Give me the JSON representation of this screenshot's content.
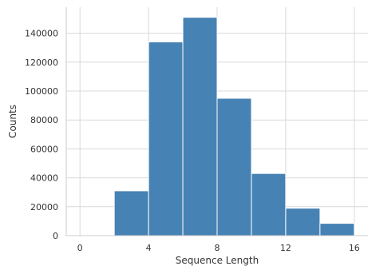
{
  "chart_data": {
    "type": "bar",
    "title": "",
    "xlabel": "Sequence Length",
    "ylabel": "Counts",
    "bins": [
      {
        "x0": 0,
        "x1": 2,
        "value": 0
      },
      {
        "x0": 2,
        "x1": 4,
        "value": 31000
      },
      {
        "x0": 4,
        "x1": 6,
        "value": 134000
      },
      {
        "x0": 6,
        "x1": 8,
        "value": 151000
      },
      {
        "x0": 8,
        "x1": 10,
        "value": 95000
      },
      {
        "x0": 10,
        "x1": 12,
        "value": 43000
      },
      {
        "x0": 12,
        "x1": 14,
        "value": 19000
      },
      {
        "x0": 14,
        "x1": 16,
        "value": 8500
      }
    ],
    "xlim": [
      -0.8,
      16.8
    ],
    "ylim": [
      0,
      158000
    ],
    "xticks": [
      0,
      4,
      8,
      12,
      16
    ],
    "xtick_labels": [
      "0",
      "4",
      "8",
      "12",
      "16"
    ],
    "yticks": [
      0,
      20000,
      40000,
      60000,
      80000,
      100000,
      120000,
      140000
    ],
    "ytick_labels": [
      "0",
      "20000",
      "40000",
      "60000",
      "80000",
      "100000",
      "120000",
      "140000"
    ],
    "grid": true,
    "bar_color": "#4682b4",
    "bar_edge_color": "#ffffff"
  }
}
